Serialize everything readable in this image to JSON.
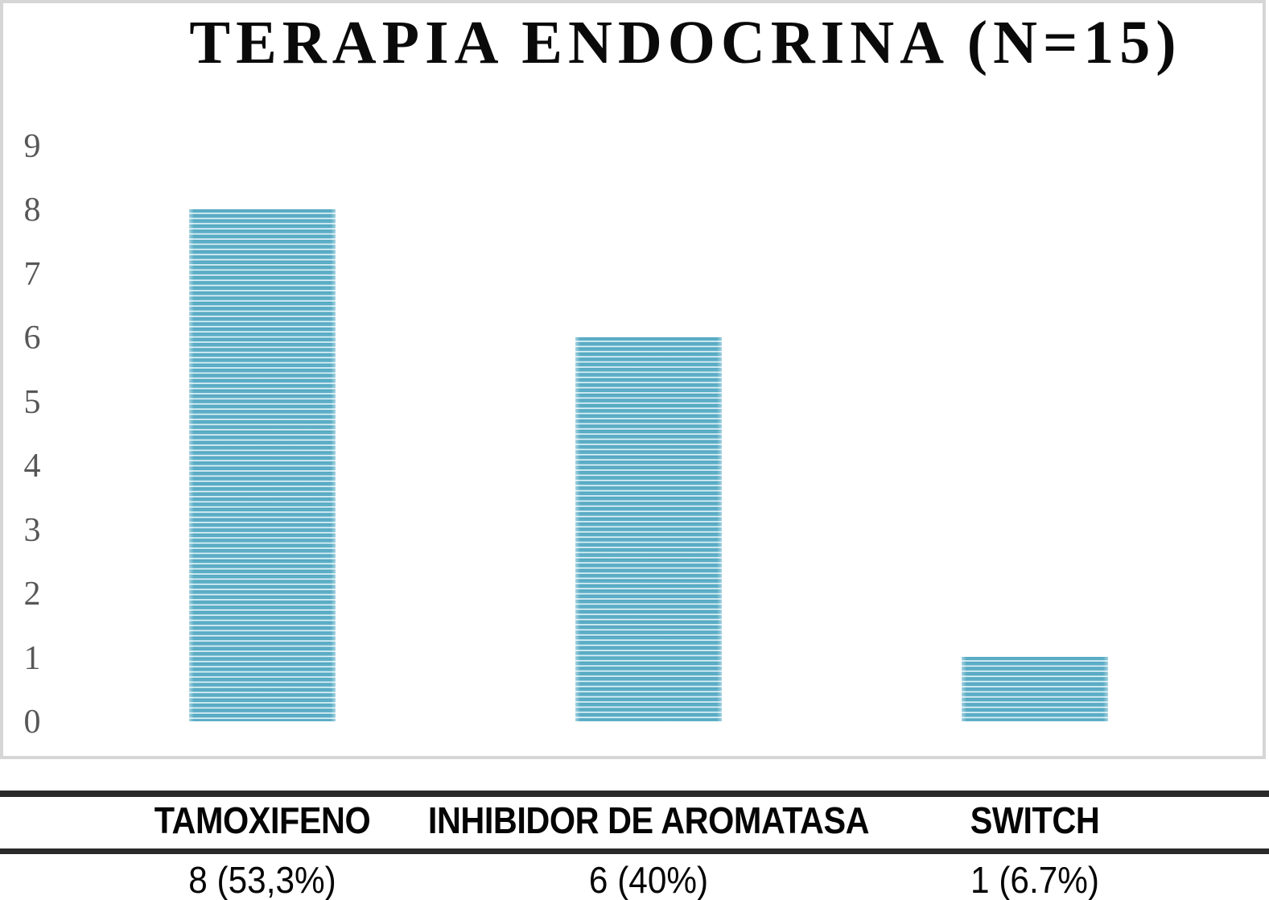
{
  "chart_data": {
    "type": "bar",
    "title": "TERAPIA ENDOCRINA (N=15)",
    "categories": [
      "TAMOXIFENO",
      "INHIBIDOR DE AROMATASA",
      "SWITCH"
    ],
    "values": [
      8,
      6,
      1
    ],
    "value_labels": [
      "8 (53,3%)",
      "6 (40%)",
      "1 (6.7%)"
    ],
    "percentages": [
      53.3,
      40,
      6.7
    ],
    "n_total": 15,
    "yticks": [
      0,
      1,
      2,
      3,
      4,
      5,
      6,
      7,
      8,
      9
    ],
    "ylim": [
      0,
      9
    ],
    "xlabel": "",
    "ylabel": "",
    "grid": false,
    "legend": false,
    "bar_pattern": "horizontal-stripes",
    "colors": {
      "stripe_dark": "#4aa2bc",
      "stripe_light": "#eef8fb",
      "tick_label": "#575757",
      "title": "#0a0a0a",
      "separator_line": "#2a2a2a",
      "chart_border": "#d6d6d6",
      "background": "#ffffff"
    }
  }
}
